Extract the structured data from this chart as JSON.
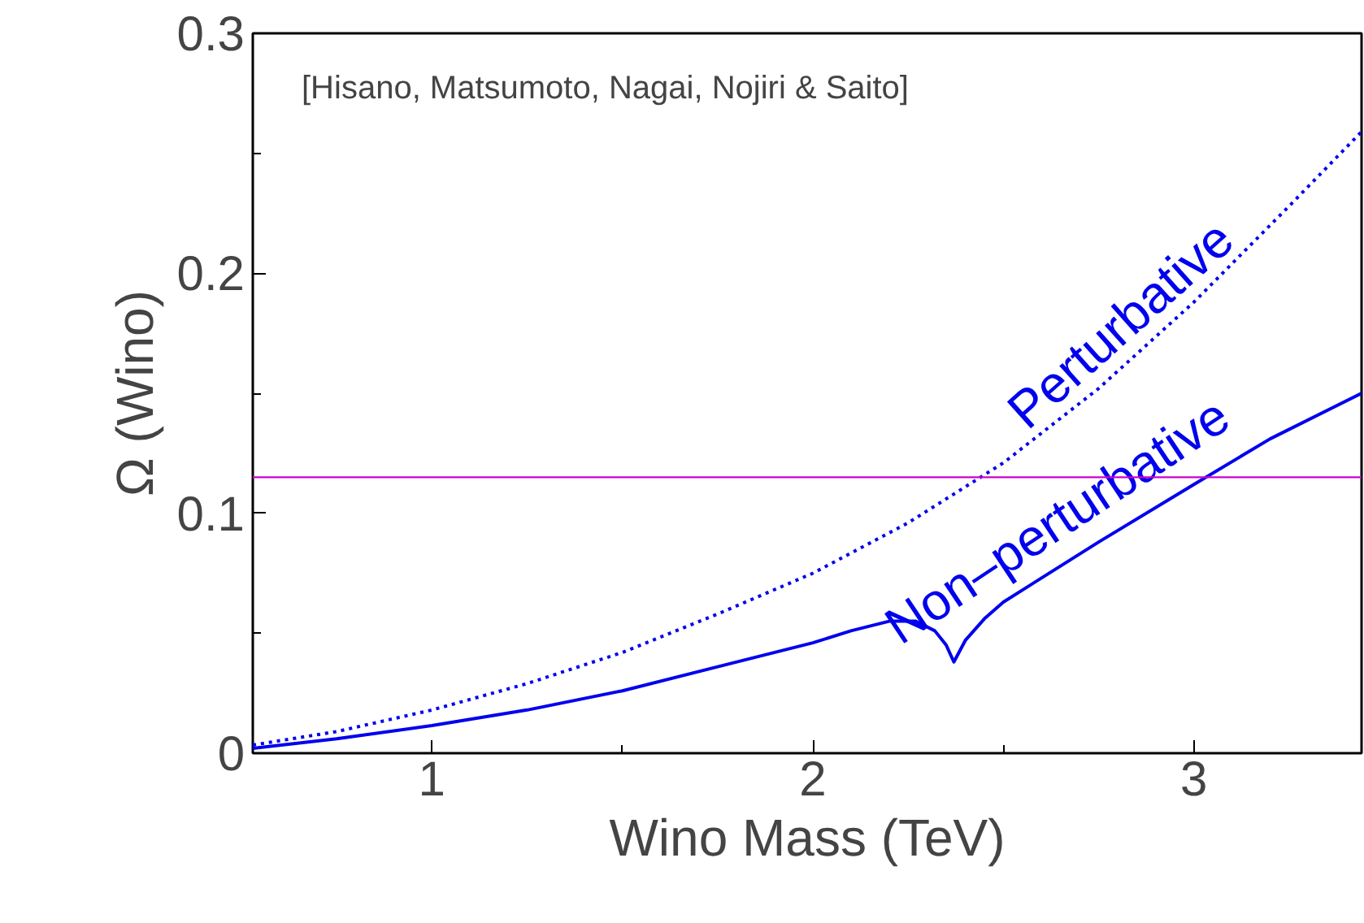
{
  "chart_data": {
    "type": "line",
    "xlabel": "Wino Mass (TeV)",
    "ylabel": "Ω (Wino)",
    "xlim": [
      0.53,
      3.44
    ],
    "ylim": [
      0,
      0.3
    ],
    "xticks": [
      1,
      2,
      3,
      {
        "value": 1.5,
        "label": null
      },
      {
        "value": 2.5,
        "label": null
      }
    ],
    "yticks": [
      0,
      0.1,
      0.2,
      0.3,
      {
        "value": 0.05,
        "label": null
      },
      {
        "value": 0.15,
        "label": null
      },
      {
        "value": 0.25,
        "label": null
      }
    ],
    "grid": false,
    "marker": "none",
    "series": [
      {
        "name": "Perturbative",
        "color": "#0000ee",
        "line_style": "dotted",
        "x": [
          0.53,
          0.75,
          1,
          1.25,
          1.5,
          1.75,
          2,
          2.25,
          2.5,
          2.75,
          3,
          3.25,
          3.44
        ],
        "values": [
          0.0034,
          0.009,
          0.018,
          0.029,
          0.042,
          0.058,
          0.075,
          0.096,
          0.121,
          0.152,
          0.188,
          0.228,
          0.259
        ]
      },
      {
        "name": "Non–perturbative",
        "color": "#0000ee",
        "line_style": "solid",
        "x": [
          0.53,
          0.75,
          1,
          1.25,
          1.5,
          1.75,
          2,
          2.1,
          2.2,
          2.27,
          2.32,
          2.35,
          2.37,
          2.4,
          2.45,
          2.5,
          2.6,
          2.75,
          3,
          3.2,
          3.44
        ],
        "values": [
          0.002,
          0.006,
          0.0115,
          0.018,
          0.026,
          0.036,
          0.046,
          0.051,
          0.055,
          0.055,
          0.051,
          0.045,
          0.038,
          0.047,
          0.056,
          0.063,
          0.073,
          0.088,
          0.112,
          0.131,
          0.15
        ]
      }
    ],
    "ref_lines": [
      {
        "axis": "y",
        "value": 0.115,
        "color": "#cc00cc"
      }
    ],
    "annotations": [
      "[Hisano, Matsumoto, Nagai, Nojiri & Saito]"
    ]
  }
}
